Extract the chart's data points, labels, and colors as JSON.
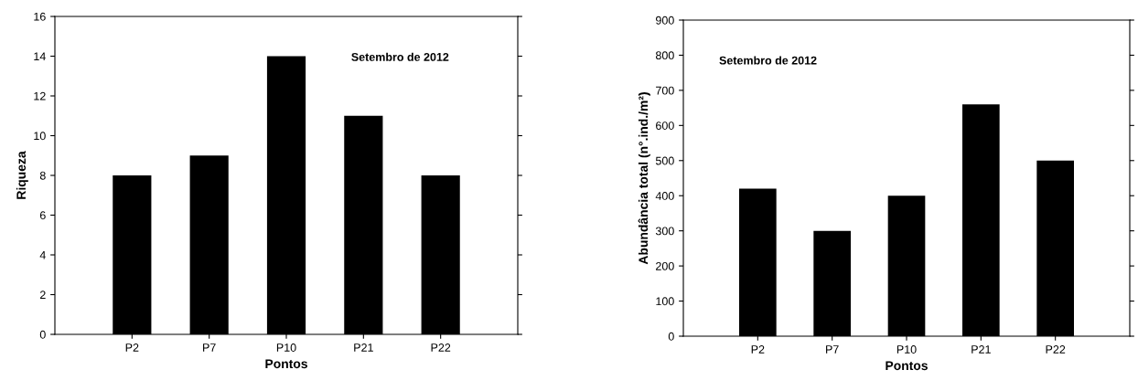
{
  "chart_data": [
    {
      "type": "bar",
      "xlabel": "Pontos",
      "ylabel": "Riqueza",
      "categories": [
        "P2",
        "P7",
        "P10",
        "P21",
        "P22"
      ],
      "values": [
        8,
        9,
        14,
        11,
        8
      ],
      "color": "#000000",
      "ylim": [
        0,
        16
      ],
      "yticks": [
        0,
        2,
        4,
        6,
        8,
        10,
        12,
        14,
        16
      ],
      "grid": false,
      "annotations": [
        "Setembro de 2012"
      ]
    },
    {
      "type": "bar",
      "xlabel": "Pontos",
      "ylabel": "Abundância total (n°.ind./m²)",
      "categories": [
        "P2",
        "P7",
        "P10",
        "P21",
        "P22"
      ],
      "values": [
        420,
        300,
        400,
        660,
        500
      ],
      "color": "#000000",
      "ylim": [
        0,
        900
      ],
      "yticks": [
        0,
        100,
        200,
        300,
        400,
        500,
        600,
        700,
        800,
        900
      ],
      "grid": false,
      "annotations": [
        "Setembro de 2012"
      ]
    }
  ]
}
